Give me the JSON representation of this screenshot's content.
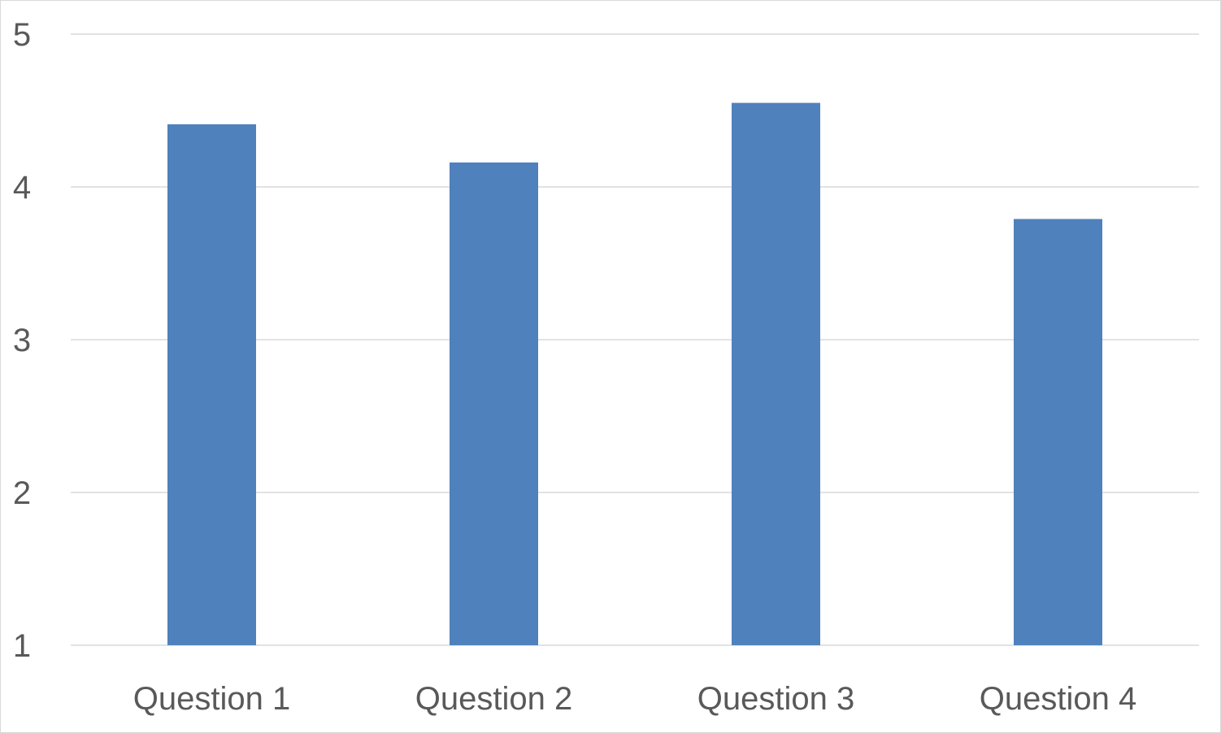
{
  "chart_data": {
    "type": "bar",
    "categories": [
      "Question 1",
      "Question 2",
      "Question 3",
      "Question 4"
    ],
    "series": [
      {
        "values": [
          4.41,
          4.16,
          4.55,
          3.79
        ]
      }
    ],
    "yticks": [
      1,
      2,
      3,
      4,
      5
    ],
    "ylim": [
      1,
      5
    ],
    "grid": true,
    "legend": "none",
    "bar_color": "#4f81bd",
    "grid_color": "#d9d9d9",
    "text_color": "#595959"
  }
}
